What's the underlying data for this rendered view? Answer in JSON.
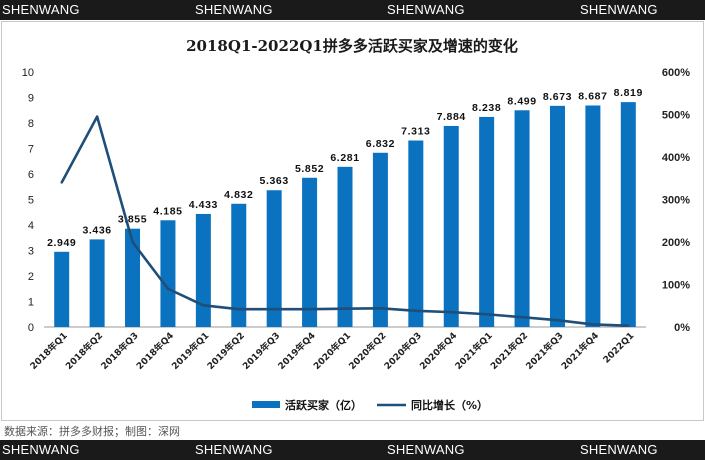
{
  "watermarks": {
    "top": [
      "SHENWANG",
      "SHENWANG",
      "SHENWANG",
      "SHENWANG"
    ],
    "bottom": [
      "SHENWANG",
      "SHENWANG",
      "SHENWANG",
      "SHENWANG"
    ]
  },
  "source_text": "数据来源：拼多多财报；制图：深网",
  "colors": {
    "bar": "#0a72bf",
    "line": "#1f4e79",
    "strip": "#1a1a1a"
  },
  "chart_data": {
    "type": "bar",
    "title": "2018Q1-2022Q1拼多多活跃买家及增速的变化",
    "categories": [
      "2018年Q1",
      "2018年Q2",
      "2018年Q3",
      "2018年Q4",
      "2019年Q1",
      "2019年Q2",
      "2019年Q3",
      "2019年Q4",
      "2020年Q1",
      "2020年Q2",
      "2020年Q3",
      "2020年Q4",
      "2021年Q1",
      "2021年Q2",
      "2021年Q3",
      "2021年Q4",
      "2022Q1"
    ],
    "series": [
      {
        "name": "活跃买家（亿）",
        "type": "bar",
        "axis": "left",
        "values": [
          2.949,
          3.436,
          3.855,
          4.185,
          4.433,
          4.832,
          5.363,
          5.852,
          6.281,
          6.832,
          7.313,
          7.884,
          8.238,
          8.499,
          8.673,
          8.687,
          8.819
        ],
        "labels": [
          "2.949",
          "3.436",
          "3.855",
          "4.185",
          "4.433",
          "4.832",
          "5.363",
          "5.852",
          "6.281",
          "6.832",
          "7.313",
          "7.884",
          "8.238",
          "8.499",
          "8.673",
          "8.687",
          "8.819"
        ]
      },
      {
        "name": "同比增长（%）",
        "type": "line",
        "axis": "right",
        "values": [
          340,
          495,
          200,
          90,
          51,
          42,
          42,
          42,
          43,
          44,
          38,
          35,
          30,
          23,
          16,
          6,
          3
        ]
      }
    ],
    "y_left": {
      "min": 0,
      "max": 10,
      "ticks": [
        "0",
        "1",
        "2",
        "3",
        "4",
        "5",
        "6",
        "7",
        "8",
        "9",
        "10"
      ]
    },
    "y_right": {
      "min": 0,
      "max": 600,
      "ticks": [
        "0%",
        "100%",
        "200%",
        "300%",
        "400%",
        "500%",
        "600%"
      ]
    },
    "grid": false,
    "legend_position": "bottom"
  }
}
